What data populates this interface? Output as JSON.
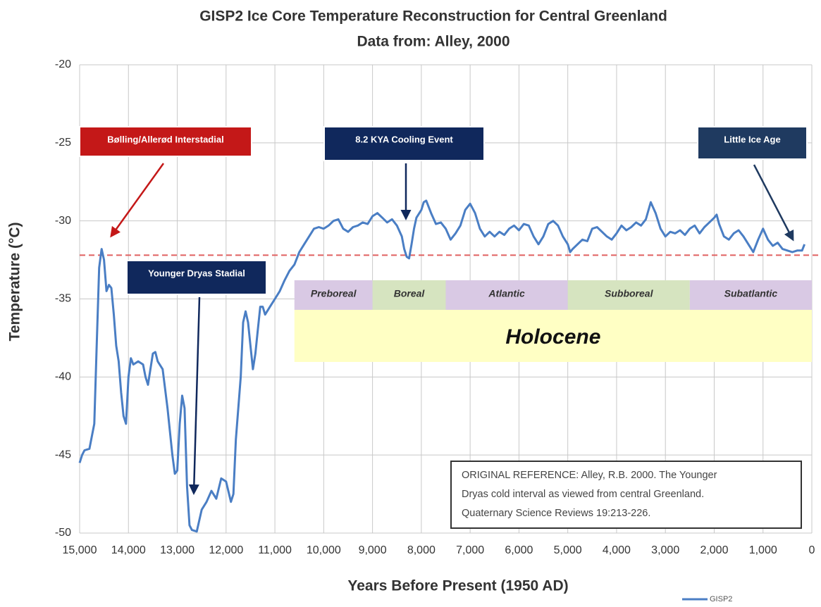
{
  "chart_data": {
    "type": "line",
    "title": "GISP2 Ice Core Temperature Reconstruction for Central Greenland",
    "subtitle": "Data from: Alley, 2000",
    "x_label": "Years Before Present (1950 AD)",
    "y_label": "Temperature (°C)",
    "xlim": [
      15000,
      0
    ],
    "ylim": [
      -50,
      -20
    ],
    "xticks": [
      {
        "value": 15000,
        "label": "15,000"
      },
      {
        "value": 14000,
        "label": "14,000"
      },
      {
        "value": 13000,
        "label": "13,000"
      },
      {
        "value": 12000,
        "label": "12,000"
      },
      {
        "value": 11000,
        "label": "11,000"
      },
      {
        "value": 10000,
        "label": "10,000"
      },
      {
        "value": 9000,
        "label": "9,000"
      },
      {
        "value": 8000,
        "label": "8,000"
      },
      {
        "value": 7000,
        "label": "7,000"
      },
      {
        "value": 6000,
        "label": "6,000"
      },
      {
        "value": 5000,
        "label": "5,000"
      },
      {
        "value": 4000,
        "label": "4,000"
      },
      {
        "value": 3000,
        "label": "3,000"
      },
      {
        "value": 2000,
        "label": "2,000"
      },
      {
        "value": 1000,
        "label": "1,000"
      },
      0
    ],
    "yticks": [
      -50,
      -45,
      -40,
      -35,
      -30,
      -25,
      -20
    ],
    "grid": true,
    "legend": "bottom-right",
    "x": [
      15000,
      14950,
      14900,
      14800,
      14700,
      14650,
      14600,
      14550,
      14500,
      14450,
      14400,
      14350,
      14300,
      14250,
      14200,
      14150,
      14100,
      14050,
      14000,
      13950,
      13900,
      13800,
      13700,
      13650,
      13600,
      13500,
      13450,
      13400,
      13300,
      13200,
      13100,
      13050,
      13000,
      12950,
      12900,
      12850,
      12800,
      12750,
      12700,
      12600,
      12500,
      12400,
      12300,
      12200,
      12100,
      12000,
      11900,
      11850,
      11800,
      11700,
      11650,
      11600,
      11550,
      11500,
      11450,
      11400,
      11350,
      11300,
      11250,
      11200,
      11100,
      11000,
      10900,
      10800,
      10700,
      10600,
      10500,
      10400,
      10300,
      10200,
      10100,
      10000,
      9900,
      9800,
      9700,
      9600,
      9500,
      9400,
      9300,
      9200,
      9100,
      9000,
      8900,
      8800,
      8700,
      8600,
      8500,
      8400,
      8350,
      8300,
      8250,
      8200,
      8150,
      8100,
      8000,
      7950,
      7900,
      7800,
      7700,
      7600,
      7500,
      7400,
      7300,
      7200,
      7100,
      7000,
      6900,
      6800,
      6700,
      6600,
      6500,
      6400,
      6300,
      6200,
      6100,
      6000,
      5900,
      5800,
      5700,
      5600,
      5500,
      5400,
      5300,
      5200,
      5100,
      5000,
      4950,
      4900,
      4800,
      4700,
      4600,
      4500,
      4400,
      4300,
      4200,
      4100,
      4000,
      3900,
      3800,
      3700,
      3600,
      3500,
      3400,
      3300,
      3200,
      3100,
      3000,
      2900,
      2800,
      2700,
      2600,
      2500,
      2400,
      2300,
      2200,
      2100,
      2000,
      1950,
      1900,
      1800,
      1700,
      1600,
      1500,
      1400,
      1300,
      1200,
      1100,
      1000,
      900,
      800,
      700,
      600,
      500,
      400,
      300,
      200,
      150
    ],
    "series": [
      {
        "name": "GISP2",
        "color": "#4a7ec4",
        "values": [
          -45.5,
          -45,
          -44.7,
          -44.6,
          -43,
          -38,
          -33,
          -31.8,
          -32.5,
          -34.5,
          -34.1,
          -34.3,
          -36,
          -38,
          -39,
          -41,
          -42.5,
          -43,
          -40,
          -38.8,
          -39.2,
          -39,
          -39.2,
          -40,
          -40.5,
          -38.5,
          -38.4,
          -39,
          -39.5,
          -42,
          -45,
          -46.2,
          -46,
          -43,
          -41.2,
          -42,
          -47,
          -49.5,
          -49.8,
          -49.9,
          -48.5,
          -48,
          -47.3,
          -47.8,
          -46.5,
          -46.7,
          -48,
          -47.5,
          -44,
          -40,
          -36.5,
          -35.8,
          -36.5,
          -38,
          -39.5,
          -38.5,
          -37,
          -35.5,
          -35.5,
          -36,
          -35.5,
          -35,
          -34.5,
          -33.8,
          -33.2,
          -32.8,
          -32,
          -31.5,
          -31,
          -30.5,
          -30.4,
          -30.5,
          -30.3,
          -30,
          -29.9,
          -30.5,
          -30.7,
          -30.4,
          -30.3,
          -30.1,
          -30.2,
          -29.7,
          -29.5,
          -29.8,
          -30.1,
          -29.9,
          -30.3,
          -31,
          -31.8,
          -32.3,
          -32.4,
          -31.5,
          -30.5,
          -29.8,
          -29.3,
          -28.8,
          -28.7,
          -29.5,
          -30.2,
          -30.1,
          -30.5,
          -31.2,
          -30.8,
          -30.3,
          -29.3,
          -28.9,
          -29.5,
          -30.5,
          -31,
          -30.7,
          -31,
          -30.7,
          -30.9,
          -30.5,
          -30.3,
          -30.6,
          -30.2,
          -30.3,
          -31,
          -31.5,
          -31,
          -30.2,
          -30,
          -30.3,
          -31,
          -31.5,
          -32,
          -31.8,
          -31.5,
          -31.2,
          -31.3,
          -30.5,
          -30.4,
          -30.7,
          -31,
          -31.2,
          -30.8,
          -30.3,
          -30.6,
          -30.4,
          -30.1,
          -30.3,
          -29.9,
          -28.8,
          -29.5,
          -30.5,
          -31,
          -30.7,
          -30.8,
          -30.6,
          -30.9,
          -30.5,
          -30.3,
          -30.8,
          -30.4,
          -30.1,
          -29.8,
          -29.6,
          -30.2,
          -31,
          -31.2,
          -30.8,
          -30.6,
          -31,
          -31.5,
          -32,
          -31.2,
          -30.5,
          -31.2,
          -31.6,
          -31.4,
          -31.8,
          -31.9,
          -32,
          -31.9,
          -31.9,
          -31.5
        ]
      }
    ],
    "reference_line": {
      "value": -32.2,
      "color": "#e06060"
    },
    "periods": [
      {
        "label": "Preboreal",
        "start": 10600,
        "end": 9000,
        "color": "#d9c9e4"
      },
      {
        "label": "Boreal",
        "start": 9000,
        "end": 7500,
        "color": "#d6e4c0"
      },
      {
        "label": "Atlantic",
        "start": 7500,
        "end": 5000,
        "color": "#d9c9e4"
      },
      {
        "label": "Subboreal",
        "start": 5000,
        "end": 2500,
        "color": "#d6e4c0"
      },
      {
        "label": "Subatlantic",
        "start": 2500,
        "end": 0,
        "color": "#d9c9e4"
      }
    ],
    "epoch": {
      "label": "Holocene",
      "start": 10600,
      "end": 0,
      "color": "#ffffc4"
    },
    "annotations": [
      {
        "text": "Bølling/Allerød Interstadial",
        "color": "#c41818"
      },
      {
        "text": "8.2 KYA Cooling Event",
        "color": "#10285c"
      },
      {
        "text": "Little Ice Age",
        "color": "#1f3a60"
      },
      {
        "text": "Younger Dryas Stadial",
        "color": "#10285c"
      }
    ],
    "reference_note": [
      "ORIGINAL REFERENCE: Alley, R.B. 2000.  The Younger",
      "Dryas cold interval as viewed from central Greenland.",
      "Quaternary Science Reviews 19:213-226."
    ]
  }
}
